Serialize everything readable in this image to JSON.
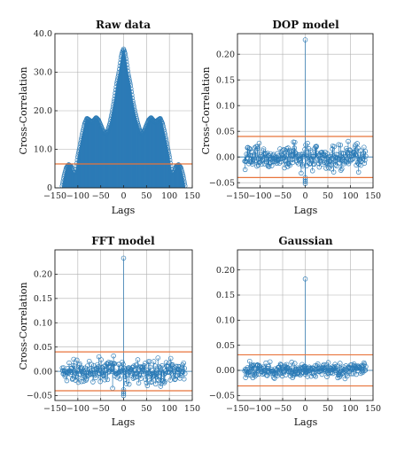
{
  "chart_data": [
    {
      "type": "stem",
      "title": "Raw data",
      "xlabel": "Lags",
      "ylabel": "Cross-Correlation",
      "xlim": [
        -150,
        150
      ],
      "ylim": [
        0,
        40
      ],
      "xticks": [
        -150,
        -100,
        -50,
        0,
        50,
        100,
        150
      ],
      "xtick_labels": [
        "−150",
        "−100",
        "−50",
        "0",
        "50",
        "100",
        "150"
      ],
      "yticks": [
        0,
        10,
        20,
        30,
        40
      ],
      "ytick_labels": [
        "0",
        "10.0",
        "20.0",
        "30.0",
        "40.0"
      ],
      "threshold": 6.2,
      "grid": true,
      "lag_range": [
        -134,
        134
      ],
      "series": [
        {
          "x": [
            -134,
            -130,
            -125,
            -120,
            -115,
            -110,
            -105,
            -100,
            -95,
            -90,
            -85,
            -80,
            -75,
            -70,
            -65,
            -60,
            -55,
            -50,
            -45,
            -40,
            -35,
            -30,
            -25,
            -20,
            -15,
            -10,
            -5,
            -3,
            0,
            3,
            5,
            10,
            15,
            20,
            25,
            30,
            35,
            40,
            45,
            50,
            55,
            60,
            65,
            70,
            75,
            80,
            85,
            90,
            95,
            100,
            105,
            110,
            115,
            120,
            125,
            130,
            134
          ],
          "y": [
            0.5,
            3.0,
            5.2,
            6.0,
            5.6,
            4.1,
            4.0,
            8.0,
            11.0,
            14.0,
            16.6,
            18.0,
            17.6,
            17.0,
            17.5,
            18.2,
            17.6,
            16.2,
            14.8,
            14.0,
            14.6,
            16.6,
            19.5,
            23.0,
            27.0,
            30.0,
            34.0,
            35.0,
            36.0,
            34.8,
            33.5,
            29.5,
            26.5,
            22.5,
            19.5,
            17.0,
            15.0,
            14.0,
            14.8,
            16.2,
            17.6,
            18.2,
            17.5,
            17.0,
            17.6,
            18.0,
            16.6,
            14.0,
            11.0,
            8.0,
            4.0,
            4.1,
            5.6,
            6.0,
            5.2,
            3.0,
            0.5
          ]
        }
      ]
    },
    {
      "type": "stem",
      "title": "DOP model",
      "xlabel": "Lags",
      "ylabel": "Cross-Correlation",
      "xlim": [
        -150,
        150
      ],
      "ylim": [
        -0.06,
        0.24
      ],
      "xticks": [
        -150,
        -100,
        -50,
        0,
        50,
        100,
        150
      ],
      "xtick_labels": [
        "−150",
        "−100",
        "−50",
        "0",
        "50",
        "100",
        "150"
      ],
      "yticks": [
        -0.05,
        0,
        0.05,
        0.1,
        0.15,
        0.2
      ],
      "ytick_labels": [
        "−0.05",
        "0.00",
        "0.05",
        "0.10",
        "0.15",
        "0.20"
      ],
      "threshold": 0.04,
      "grid": true,
      "lag_range": [
        -134,
        134
      ],
      "peak": {
        "x": 0,
        "y": 0.228
      },
      "min_at_zero": -0.052,
      "noise_amplitude": 0.035
    },
    {
      "type": "stem",
      "title": "FFT model",
      "xlabel": "Lags",
      "ylabel": "Cross-Correlation",
      "xlim": [
        -150,
        150
      ],
      "ylim": [
        -0.06,
        0.25
      ],
      "xticks": [
        -150,
        -100,
        -50,
        0,
        50,
        100,
        150
      ],
      "xtick_labels": [
        "−150",
        "−100",
        "−50",
        "0",
        "50",
        "100",
        "150"
      ],
      "yticks": [
        -0.05,
        0,
        0.05,
        0.1,
        0.15,
        0.2
      ],
      "ytick_labels": [
        "−0.05",
        "0.00",
        "0.05",
        "0.10",
        "0.15",
        "0.20"
      ],
      "threshold": 0.04,
      "grid": true,
      "lag_range": [
        -134,
        134
      ],
      "peak": {
        "x": 0,
        "y": 0.233
      },
      "min_at_zero": -0.05,
      "noise_amplitude": 0.037
    },
    {
      "type": "stem",
      "title": "Gaussian",
      "xlabel": "Lags",
      "ylabel": "",
      "xlim": [
        -150,
        150
      ],
      "ylim": [
        -0.06,
        0.24
      ],
      "xticks": [
        -150,
        -100,
        -50,
        0,
        50,
        100,
        150
      ],
      "xtick_labels": [
        "−150",
        "−100",
        "−50",
        "0",
        "50",
        "100",
        "150"
      ],
      "yticks": [
        -0.05,
        0,
        0.05,
        0.1,
        0.15,
        0.2
      ],
      "ytick_labels": [
        "−0.05",
        "0.00",
        "0.05",
        "0.10",
        "0.15",
        "0.20"
      ],
      "threshold": 0.031,
      "grid": true,
      "lag_range": [
        -134,
        134
      ],
      "peak": {
        "x": 0,
        "y": 0.182
      },
      "min_at_zero": -0.008,
      "noise_amplitude": 0.02
    }
  ],
  "colors": {
    "stem": "#2c7bb6",
    "threshold": "#e8743b",
    "grid": "#b0b0b0",
    "axis": "#222222"
  }
}
